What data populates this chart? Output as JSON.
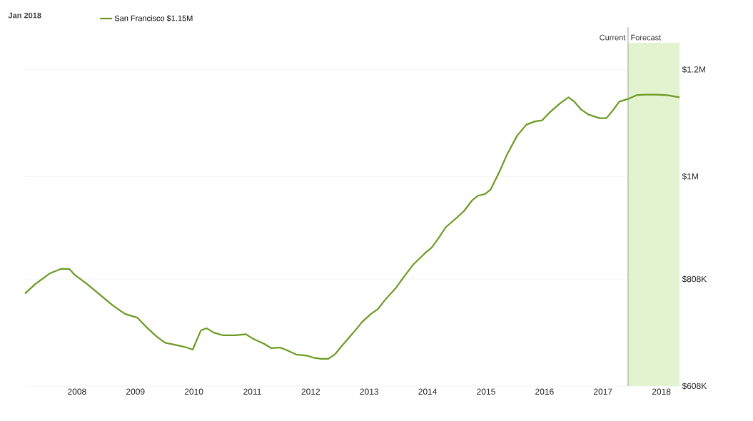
{
  "chart_data": {
    "type": "line",
    "title": "Jan 2018",
    "x": [
      2007.11,
      2007.29,
      2007.54,
      2007.72,
      2007.87,
      2007.96,
      2008.17,
      2008.39,
      2008.61,
      2008.82,
      2008.94,
      2009.03,
      2009.18,
      2009.37,
      2009.51,
      2009.73,
      2009.88,
      2009.98,
      2010.12,
      2010.22,
      2010.34,
      2010.49,
      2010.71,
      2010.89,
      2011.02,
      2011.2,
      2011.32,
      2011.47,
      2011.57,
      2011.75,
      2011.93,
      2012.05,
      2012.18,
      2012.3,
      2012.42,
      2012.54,
      2012.73,
      2012.88,
      2013.03,
      2013.15,
      2013.27,
      2013.46,
      2013.62,
      2013.76,
      2013.95,
      2014.07,
      2014.19,
      2014.31,
      2014.5,
      2014.62,
      2014.76,
      2014.86,
      2014.98,
      2015.08,
      2015.23,
      2015.35,
      2015.53,
      2015.69,
      2015.84,
      2015.96,
      2016.08,
      2016.27,
      2016.41,
      2016.51,
      2016.63,
      2016.75,
      2016.94,
      2017.06,
      2017.18,
      2017.28,
      2017.43,
      2017.57,
      2017.73,
      2017.91,
      2018.1,
      2018.31
    ],
    "series": [
      {
        "name": "San Francisco $1.15M",
        "color": "#6b9a23",
        "values": [
          781000,
          799000,
          819000,
          827000,
          827000,
          816000,
          799000,
          779000,
          759000,
          743000,
          739000,
          736000,
          719000,
          700000,
          689000,
          684000,
          680000,
          676000,
          712000,
          716000,
          708000,
          703000,
          703000,
          705000,
          696000,
          687000,
          679000,
          680000,
          676000,
          667000,
          665000,
          661000,
          659000,
          659000,
          668000,
          684000,
          708000,
          728000,
          743000,
          752000,
          769000,
          792000,
          816000,
          836000,
          856000,
          867000,
          885000,
          905000,
          923000,
          935000,
          955000,
          964000,
          967000,
          976000,
          1009000,
          1039000,
          1076000,
          1097000,
          1103000,
          1105000,
          1119000,
          1137000,
          1148000,
          1140000,
          1125000,
          1116000,
          1109000,
          1109000,
          1125000,
          1140000,
          1145000,
          1152000,
          1153000,
          1153000,
          1152000,
          1148000
        ]
      }
    ],
    "xlim": [
      2007.11,
      2018.31
    ],
    "xticks": [
      2008,
      2009,
      2010,
      2011,
      2012,
      2013,
      2014,
      2015,
      2016,
      2017,
      2018
    ],
    "ylim": [
      608000,
      1250000
    ],
    "yticks": [
      {
        "value": 608000,
        "label": "$608K"
      },
      {
        "value": 808000,
        "label": "$808K"
      },
      {
        "value": 1000000,
        "label": "$1M"
      },
      {
        "value": 1200000,
        "label": "$1.2M"
      }
    ],
    "ref_lines": [
      {
        "axis": "x",
        "value": 2017.43,
        "label": "Current",
        "color": "#9aa0a6"
      }
    ],
    "bands": [
      {
        "axis": "x",
        "from": 2017.43,
        "to": 2018.31,
        "label": "Forecast",
        "color": "#e4f3cf"
      }
    ],
    "grid": "y",
    "legend": "top left",
    "marker": "none",
    "line_style": "solid"
  }
}
